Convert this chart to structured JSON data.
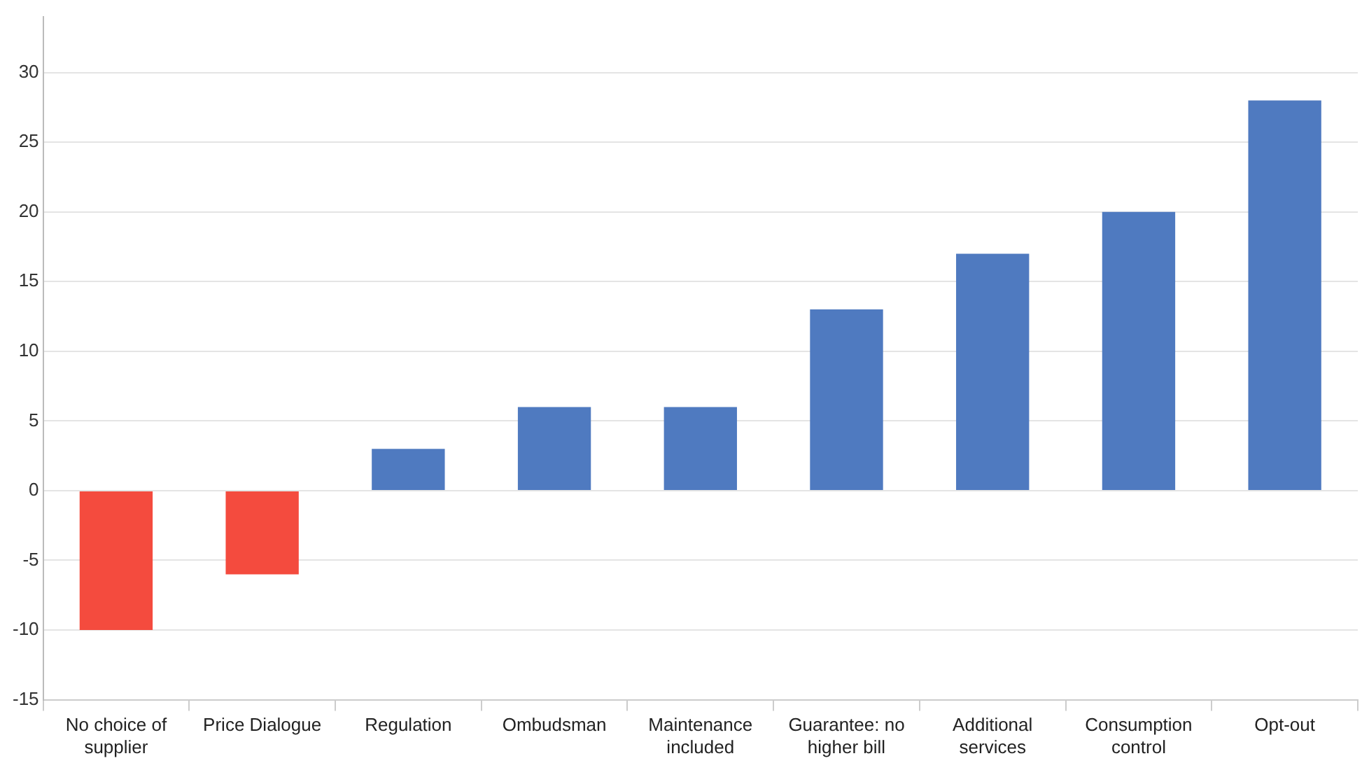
{
  "chart_data": {
    "type": "bar",
    "categories": [
      "No choice of supplier",
      "Price Dialogue",
      "Regulation",
      "Ombudsman",
      "Maintenance included",
      "Guarantee: no higher bill",
      "Additional services",
      "Consumption control",
      "Opt-out"
    ],
    "values": [
      -10,
      -6,
      3,
      6,
      6,
      13,
      17,
      20,
      28
    ],
    "colors": [
      "#f44b3e",
      "#f44b3e",
      "#4f7ac0",
      "#4f7ac0",
      "#4f7ac0",
      "#4f7ac0",
      "#4f7ac0",
      "#4f7ac0",
      "#4f7ac0"
    ],
    "ylim": [
      -15,
      34
    ],
    "yticks": [
      -15,
      -10,
      -5,
      0,
      5,
      10,
      15,
      20,
      25,
      30
    ],
    "grid": "y",
    "legend": false
  }
}
